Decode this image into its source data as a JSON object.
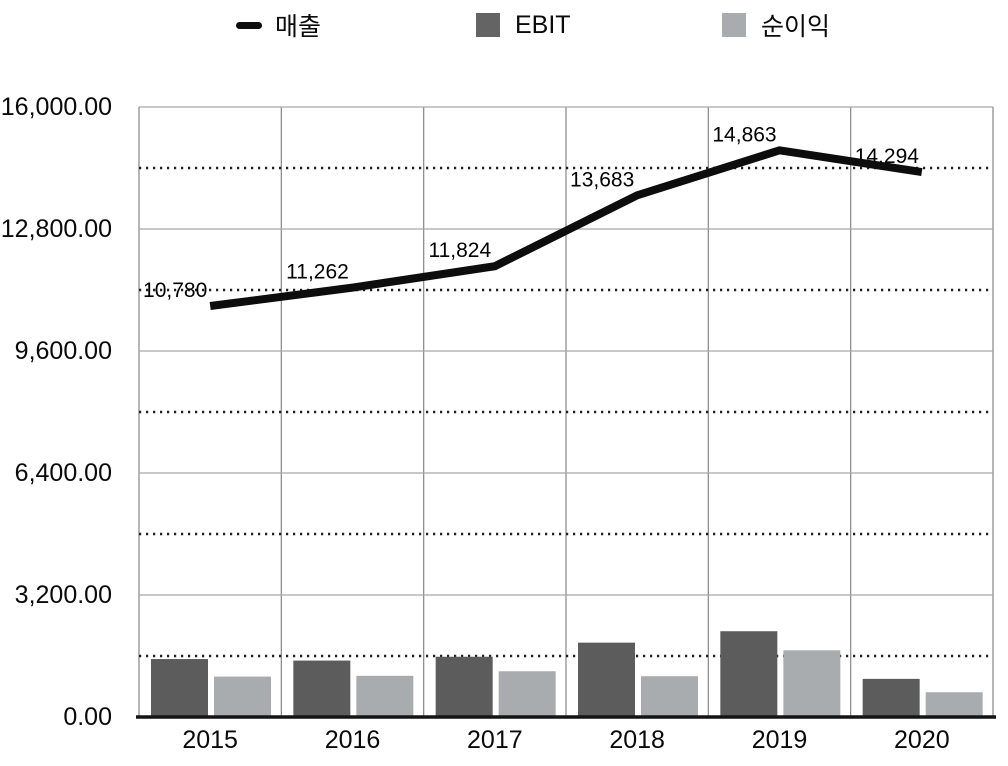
{
  "legend": {
    "items": [
      {
        "label": "매출",
        "marker": "line-dash",
        "color": "#0d0d0d"
      },
      {
        "label": "EBIT",
        "marker": "square",
        "color": "#646464"
      },
      {
        "label": "순이익",
        "marker": "square",
        "color": "#a9acae"
      }
    ]
  },
  "chart_data": {
    "type": "combo",
    "title": "",
    "xlabel": "",
    "ylabel": "",
    "categories": [
      "2015",
      "2016",
      "2017",
      "2018",
      "2019",
      "2020"
    ],
    "series": [
      {
        "name": "매출",
        "type": "line",
        "color": "#0d0d0d",
        "values": [
          10780,
          11262,
          11824,
          13683,
          14863,
          14294
        ],
        "point_labels": [
          "10,780",
          "11,262",
          "11,824",
          "13,683",
          "14,863",
          "14,294"
        ]
      },
      {
        "name": "EBIT",
        "type": "bar",
        "color": "#5c5c5c",
        "values": [
          1520,
          1480,
          1580,
          1950,
          2250,
          1000
        ]
      },
      {
        "name": "순이익",
        "type": "bar",
        "color": "#a9acae",
        "values": [
          1060,
          1080,
          1200,
          1070,
          1750,
          650
        ]
      }
    ],
    "ylim": [
      0,
      16000
    ],
    "y_ticks": [
      {
        "value": 16000,
        "label": "16,000.00"
      },
      {
        "value": 12800,
        "label": "12,800.00"
      },
      {
        "value": 9600,
        "label": "9,600.00"
      },
      {
        "value": 6400,
        "label": "6,400.00"
      },
      {
        "value": 3200,
        "label": "3,200.00"
      },
      {
        "value": 0,
        "label": "0.00"
      }
    ],
    "minor_gridlines": [
      14400,
      11200,
      8000,
      4800,
      1600
    ],
    "grid": true,
    "legend_position": "top",
    "colors": {
      "frame_line": "#8f8f8f",
      "major_gridline": "#a8a8a8",
      "minor_dotted": "#1f1f1f",
      "axis_baseline": "#141414",
      "text": "#0a0a0a"
    }
  }
}
